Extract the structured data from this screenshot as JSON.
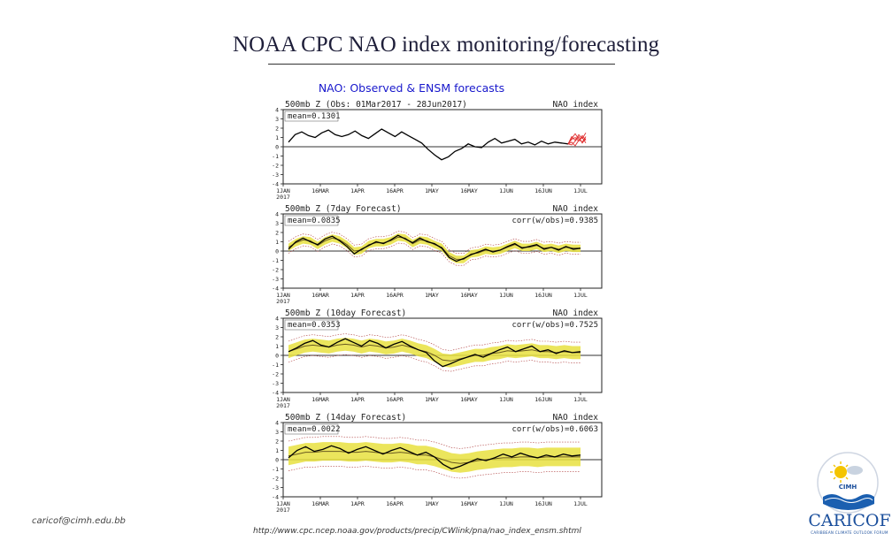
{
  "slide": {
    "title": "NOAA CPC NAO index monitoring/forecasting",
    "email": "caricof@cimh.edu.bb",
    "source_url": "http://www.cpc.ncep.noaa.gov/products/precip/CWlink/pna/nao_index_ensm.shtml"
  },
  "logos": {
    "cimh": "CIMH",
    "caricof_word": "CARICOF",
    "caricof_tagline": "CARIBBEAN CLIMATE OUTLOOK FORUM"
  },
  "colors": {
    "observed": "#000000",
    "forecast_members": "#e03030",
    "spread": "#e8e040",
    "title_blue": "#1818cc",
    "frame": "#222222"
  },
  "chart_data": {
    "type": "line",
    "figure_title": "NAO: Observed & ENSM forecasts",
    "x_ticks": [
      "1JAN\n2017",
      "16MAR",
      "1APR",
      "16APR",
      "1MAY",
      "16MAY",
      "1JUN",
      "16JUN",
      "1JUL"
    ],
    "ylim": [
      -4,
      4
    ],
    "y_ticks": [
      "4",
      "3",
      "2",
      "1",
      "0",
      "-1",
      "-2",
      "-3",
      "-4"
    ],
    "panels": [
      {
        "title_left": "500mb Z (Obs: 01Mar2017 - 28Jun2017)",
        "title_right": "NAO index",
        "stat_label": "mean=0.1301",
        "stat_right": "",
        "observed": [
          0.5,
          1.3,
          1.6,
          1.2,
          1.0,
          1.5,
          1.8,
          1.3,
          1.1,
          1.3,
          1.7,
          1.2,
          0.9,
          1.4,
          1.9,
          1.5,
          1.1,
          1.6,
          1.2,
          0.8,
          0.4,
          -0.3,
          -0.9,
          -1.4,
          -1.1,
          -0.5,
          -0.2,
          0.3,
          0.0,
          -0.1,
          0.5,
          0.9,
          0.4,
          0.6,
          0.8,
          0.3,
          0.5,
          0.2,
          0.6,
          0.3,
          0.5,
          0.4,
          0.3
        ],
        "forecast_members": [
          [
            0.3,
            0.8,
            1.0,
            0.6,
            1.2,
            0.7
          ],
          [
            0.3,
            0.2,
            0.6,
            1.1,
            0.4,
            0.9
          ],
          [
            0.3,
            0.9,
            1.4,
            0.8,
            0.5,
            1.1
          ],
          [
            0.3,
            0.5,
            0.1,
            0.7,
            1.0,
            0.4
          ],
          [
            0.3,
            1.1,
            0.7,
            1.3,
            0.9,
            1.5
          ]
        ]
      },
      {
        "title_left": "500mb Z (7day Forecast)",
        "title_right": "NAO index",
        "stat_label": "mean=0.0835",
        "stat_right": "corr(w/obs)=0.9385",
        "observed": [
          0.2,
          1.0,
          1.4,
          1.0,
          0.7,
          1.3,
          1.6,
          1.1,
          0.5,
          -0.3,
          0.2,
          0.6,
          1.0,
          0.8,
          1.2,
          1.7,
          1.3,
          0.9,
          1.4,
          1.0,
          0.8,
          0.3,
          -0.7,
          -1.1,
          -0.8,
          -0.4,
          -0.1,
          0.2,
          -0.1,
          0.1,
          0.5,
          0.8,
          0.3,
          0.5,
          0.7,
          0.2,
          0.4,
          0.1,
          0.5,
          0.2,
          0.3
        ],
        "forecast": [
          0.4,
          0.9,
          1.2,
          1.1,
          0.6,
          1.1,
          1.4,
          1.2,
          0.7,
          0.0,
          0.1,
          0.7,
          0.9,
          0.9,
          1.1,
          1.5,
          1.4,
          0.8,
          1.2,
          1.1,
          0.7,
          0.4,
          -0.5,
          -0.9,
          -0.9,
          -0.3,
          -0.2,
          0.1,
          0.0,
          0.1,
          0.4,
          0.7,
          0.4,
          0.4,
          0.6,
          0.3,
          0.4,
          0.2,
          0.4,
          0.3,
          0.3
        ],
        "spread": 0.4
      },
      {
        "title_left": "500mb Z (10day Forecast)",
        "title_right": "NAO index",
        "stat_label": "mean=0.0353",
        "stat_right": "corr(w/obs)=0.7525",
        "observed": [
          0.4,
          0.8,
          1.3,
          1.6,
          1.1,
          0.9,
          1.4,
          1.8,
          1.4,
          1.0,
          1.6,
          1.3,
          0.8,
          1.2,
          1.5,
          1.0,
          0.6,
          0.3,
          -0.6,
          -1.2,
          -0.9,
          -0.5,
          -0.2,
          0.1,
          -0.2,
          0.2,
          0.6,
          0.9,
          0.4,
          0.7,
          1.0,
          0.4,
          0.6,
          0.2,
          0.5,
          0.3,
          0.4
        ],
        "forecast": [
          0.4,
          0.7,
          1.0,
          1.1,
          1.0,
          0.9,
          1.1,
          1.2,
          1.1,
          0.9,
          1.1,
          1.0,
          0.8,
          0.9,
          1.1,
          0.9,
          0.6,
          0.4,
          0.0,
          -0.5,
          -0.6,
          -0.4,
          -0.2,
          0.0,
          0.0,
          0.2,
          0.3,
          0.5,
          0.4,
          0.5,
          0.6,
          0.4,
          0.4,
          0.3,
          0.4,
          0.3,
          0.3
        ],
        "spread": 0.7
      },
      {
        "title_left": "500mb Z (14day Forecast)",
        "title_right": "NAO index",
        "stat_label": "mean=0.0022",
        "stat_right": "corr(w/obs)=0.6063",
        "observed": [
          0.2,
          1.0,
          1.4,
          0.9,
          1.1,
          1.5,
          1.2,
          0.7,
          1.1,
          1.4,
          1.0,
          0.6,
          1.0,
          1.3,
          0.9,
          0.5,
          0.8,
          0.3,
          -0.5,
          -1.0,
          -0.7,
          -0.3,
          0.1,
          -0.1,
          0.2,
          0.6,
          0.3,
          0.7,
          0.4,
          0.2,
          0.5,
          0.3,
          0.6,
          0.4,
          0.5
        ],
        "forecast": [
          0.4,
          0.6,
          0.8,
          0.8,
          0.9,
          0.9,
          0.9,
          0.8,
          0.8,
          0.9,
          0.8,
          0.7,
          0.7,
          0.8,
          0.7,
          0.5,
          0.5,
          0.3,
          0.0,
          -0.3,
          -0.4,
          -0.3,
          -0.1,
          0.0,
          0.1,
          0.2,
          0.2,
          0.3,
          0.3,
          0.2,
          0.3,
          0.3,
          0.3,
          0.3,
          0.3
        ],
        "spread": 1.0
      }
    ]
  }
}
